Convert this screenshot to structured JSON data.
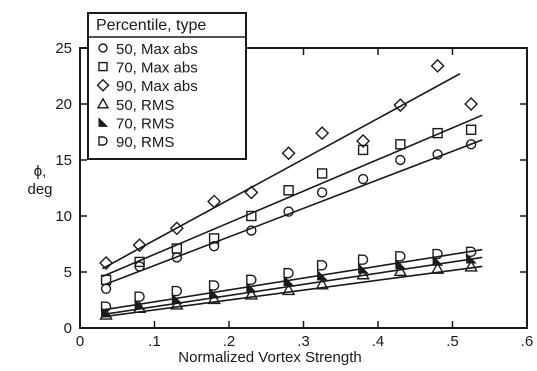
{
  "chart_data": {
    "type": "scatter",
    "xlabel": "Normalized Vortex Strength",
    "ylabel": [
      "ϕ,",
      "deg"
    ],
    "xlim": [
      0,
      0.6
    ],
    "ylim": [
      0,
      25
    ],
    "xticks": [
      0,
      0.1,
      0.2,
      0.3,
      0.4,
      0.5,
      0.6
    ],
    "xtick_labels": [
      "0",
      ".1",
      ".2",
      ".3",
      ".4",
      ".5",
      ".6"
    ],
    "yticks": [
      0,
      5,
      10,
      15,
      20,
      25
    ],
    "ytick_labels": [
      "0",
      "5",
      "10",
      "15",
      "20",
      "25"
    ],
    "grid": false,
    "legend": {
      "title": "Percentile, type",
      "placement": "top-left"
    },
    "x": [
      0.035,
      0.08,
      0.13,
      0.18,
      0.23,
      0.28,
      0.325,
      0.38,
      0.43,
      0.48,
      0.525
    ],
    "series": [
      {
        "name": "50, Max abs",
        "marker": "circle",
        "values": [
          3.5,
          5.5,
          6.3,
          7.3,
          8.7,
          10.4,
          12.1,
          13.3,
          15.0,
          15.5,
          16.4
        ],
        "fit": [
          [
            0.03,
            3.8
          ],
          [
            0.54,
            16.8
          ]
        ]
      },
      {
        "name": "70, Max abs",
        "marker": "square",
        "values": [
          4.3,
          5.9,
          7.1,
          8.0,
          10.0,
          12.3,
          13.8,
          15.9,
          16.4,
          17.4,
          17.7
        ],
        "fit": [
          [
            0.03,
            4.6
          ],
          [
            0.54,
            19.0
          ]
        ]
      },
      {
        "name": "90, Max abs",
        "marker": "diamond",
        "values": [
          5.8,
          7.4,
          8.9,
          11.3,
          12.1,
          15.6,
          17.4,
          16.7,
          19.9,
          23.4,
          20.0
        ],
        "fit": [
          [
            0.03,
            5.3
          ],
          [
            0.51,
            22.7
          ]
        ]
      },
      {
        "name": "50, RMS",
        "marker": "triangle",
        "values": [
          1.2,
          1.8,
          2.1,
          2.6,
          3.0,
          3.4,
          3.9,
          4.8,
          5.1,
          5.3,
          5.5
        ],
        "fit": [
          [
            0.03,
            1.0
          ],
          [
            0.54,
            5.5
          ]
        ]
      },
      {
        "name": "70, RMS",
        "marker": "right-triangle",
        "values": [
          1.4,
          2.1,
          2.6,
          3.1,
          3.6,
          4.2,
          4.7,
          5.3,
          5.7,
          6.0,
          6.2
        ],
        "fit": [
          [
            0.03,
            1.2
          ],
          [
            0.54,
            6.3
          ]
        ]
      },
      {
        "name": "90, RMS",
        "marker": "d-shape",
        "values": [
          1.9,
          2.8,
          3.3,
          3.8,
          4.3,
          4.9,
          5.6,
          6.1,
          6.4,
          6.6,
          6.8
        ],
        "fit": [
          [
            0.03,
            1.6
          ],
          [
            0.54,
            7.0
          ]
        ]
      }
    ]
  }
}
